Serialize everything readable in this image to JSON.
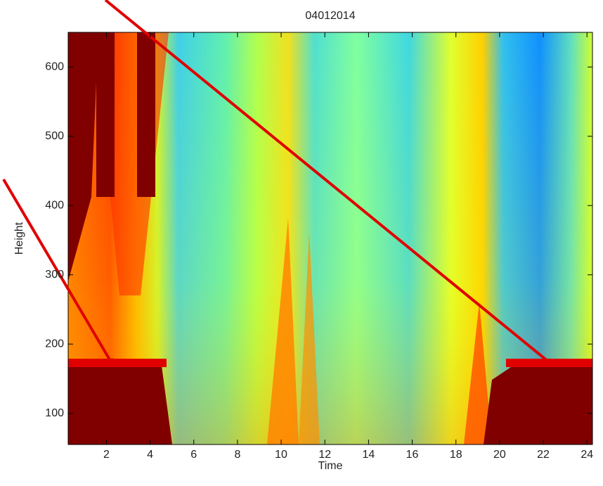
{
  "chart_data": {
    "type": "heatmap",
    "title": "04012014",
    "x_label": "Time",
    "y_label": "Height",
    "xlim": [
      0.25,
      24.25
    ],
    "ylim": [
      55,
      650
    ],
    "xticks": [
      2,
      4,
      6,
      8,
      10,
      12,
      14,
      16,
      18,
      20,
      22,
      24
    ],
    "yticks": [
      100,
      200,
      300,
      400,
      500,
      600
    ]
  }
}
